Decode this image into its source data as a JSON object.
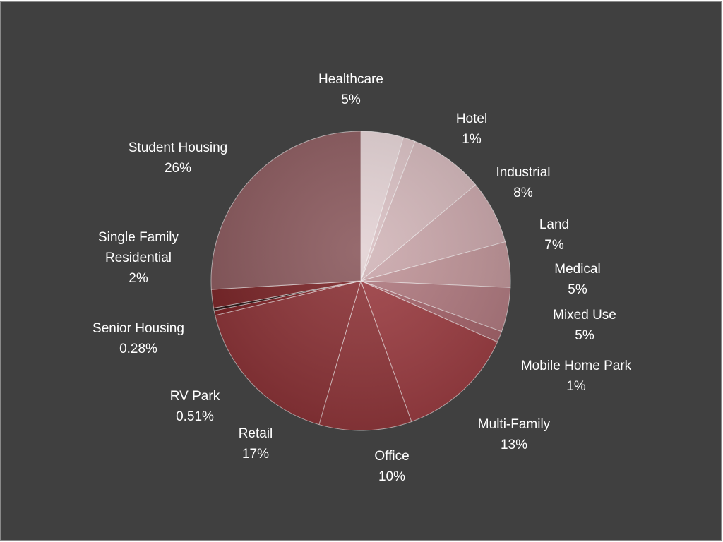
{
  "chart_data": {
    "type": "pie",
    "title": "",
    "legend": "none",
    "data_labels": "category-and-percent",
    "colors": {
      "background": "#404040",
      "text": "#ffffff",
      "light_end": "#e6d3d6",
      "dark_end": "#7a1c1e"
    },
    "slices": [
      {
        "name": "Healthcare",
        "label": "Healthcare",
        "percent_label": "5%",
        "value": 4.6,
        "color": "#e3d2d4"
      },
      {
        "name": "Hotel",
        "label": "Hotel",
        "percent_label": "1%",
        "value": 1.3,
        "color": "#d9c0c3"
      },
      {
        "name": "Industrial",
        "label": "Industrial",
        "percent_label": "8%",
        "value": 8.0,
        "color": "#d2b6b9"
      },
      {
        "name": "Land",
        "label": "Land",
        "percent_label": "7%",
        "value": 6.9,
        "color": "#caa7ab"
      },
      {
        "name": "Medical",
        "label": "Medical",
        "percent_label": "5%",
        "value": 4.9,
        "color": "#c09599"
      },
      {
        "name": "Mixed Use",
        "label": "Mixed Use",
        "percent_label": "5%",
        "value": 4.8,
        "color": "#b07a80"
      },
      {
        "name": "Mobile Home Park",
        "label": "Mobile Home Park",
        "percent_label": "1%",
        "value": 1.2,
        "color": "#a5646b"
      },
      {
        "name": "Multi-Family",
        "label": "Multi-Family",
        "percent_label": "13%",
        "value": 12.8,
        "color": "#9c3e43"
      },
      {
        "name": "Office",
        "label": "Office",
        "percent_label": "10%",
        "value": 10.0,
        "color": "#91383c"
      },
      {
        "name": "Retail",
        "label": "Retail",
        "percent_label": "17%",
        "value": 16.8,
        "color": "#8c3438"
      },
      {
        "name": "RV Park",
        "label": "RV Park",
        "percent_label": "0.51%",
        "value": 0.51,
        "color": "#7d2226"
      },
      {
        "name": "Senior Housing",
        "label": "Senior Housing",
        "percent_label": "0.28%",
        "value": 0.28,
        "color": "#2a1414"
      },
      {
        "name": "Single Family Residential",
        "label": "Single Family\nResidential",
        "percent_label": "2%",
        "value": 2.0,
        "color": "#7a2528"
      },
      {
        "name": "Student Housing",
        "label": "Student Housing",
        "percent_label": "26%",
        "value": 25.91,
        "color": "#8b5a5e"
      }
    ]
  }
}
